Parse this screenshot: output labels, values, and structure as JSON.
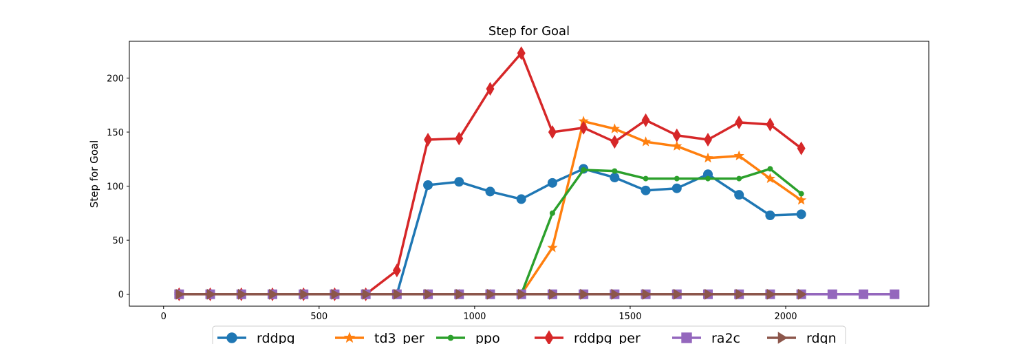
{
  "chart_data": {
    "type": "line",
    "title": "Step for Goal",
    "xlabel": "",
    "ylabel": "Step for Goal",
    "xlim": [
      -110,
      2460
    ],
    "ylim": [
      -11,
      234
    ],
    "xticks": [
      0,
      500,
      1000,
      1500,
      2000
    ],
    "yticks": [
      0,
      50,
      100,
      150,
      200
    ],
    "grid": false,
    "legend_position": "bottom-center",
    "series": [
      {
        "name": "rddpg",
        "color": "#1f77b4",
        "marker": "circle",
        "x": [
          50,
          150,
          250,
          350,
          450,
          550,
          650,
          750,
          850,
          950,
          1050,
          1150,
          1250,
          1350,
          1450,
          1550,
          1650,
          1750,
          1850,
          1950,
          2050
        ],
        "y": [
          0,
          0,
          0,
          0,
          0,
          0,
          0,
          0,
          101,
          104,
          95,
          88,
          103,
          116,
          108,
          96,
          98,
          111,
          92,
          73,
          74
        ]
      },
      {
        "name": "td3_per",
        "color": "#ff7f0e",
        "marker": "star",
        "x": [
          50,
          150,
          250,
          350,
          450,
          550,
          650,
          750,
          850,
          950,
          1050,
          1150,
          1250,
          1350,
          1450,
          1550,
          1650,
          1750,
          1850,
          1950,
          2050
        ],
        "y": [
          0,
          0,
          0,
          0,
          0,
          0,
          0,
          0,
          0,
          0,
          0,
          0,
          43,
          160,
          153,
          141,
          137,
          126,
          128,
          107,
          87
        ]
      },
      {
        "name": "ppo",
        "color": "#2ca02c",
        "marker": "point",
        "x": [
          50,
          150,
          250,
          350,
          450,
          550,
          650,
          750,
          850,
          950,
          1050,
          1150,
          1250,
          1350,
          1450,
          1550,
          1650,
          1750,
          1850,
          1950,
          2050
        ],
        "y": [
          0,
          0,
          0,
          0,
          0,
          0,
          0,
          0,
          0,
          0,
          0,
          0,
          75,
          115,
          114,
          107,
          107,
          107,
          107,
          116,
          93
        ]
      },
      {
        "name": "rddpg_per",
        "color": "#d62728",
        "marker": "thin_diamond",
        "x": [
          50,
          150,
          250,
          350,
          450,
          550,
          650,
          750,
          850,
          950,
          1050,
          1150,
          1250,
          1350,
          1450,
          1550,
          1650,
          1750,
          1850,
          1950,
          2050
        ],
        "y": [
          0,
          0,
          0,
          0,
          0,
          0,
          0,
          22,
          143,
          144,
          190,
          223,
          150,
          154,
          141,
          161,
          147,
          143,
          159,
          157,
          135
        ]
      },
      {
        "name": "ra2c",
        "color": "#9467bd",
        "marker": "square",
        "x": [
          50,
          150,
          250,
          350,
          450,
          550,
          650,
          750,
          850,
          950,
          1050,
          1150,
          1250,
          1350,
          1450,
          1550,
          1650,
          1750,
          1850,
          1950,
          2050,
          2150,
          2250,
          2350
        ],
        "y": [
          0,
          0,
          0,
          0,
          0,
          0,
          0,
          0,
          0,
          0,
          0,
          0,
          0,
          0,
          0,
          0,
          0,
          0,
          0,
          0,
          0,
          0,
          0,
          0
        ]
      },
      {
        "name": "rdqn",
        "color": "#8c564b",
        "marker": "triangle_right",
        "x": [
          50,
          150,
          250,
          350,
          450,
          550,
          650,
          750,
          850,
          950,
          1050,
          1150,
          1250,
          1350,
          1450,
          1550,
          1650,
          1750,
          1850,
          1950,
          2050
        ],
        "y": [
          0,
          0,
          0,
          0,
          0,
          0,
          0,
          0,
          0,
          0,
          0,
          0,
          0,
          0,
          0,
          0,
          0,
          0,
          0,
          0,
          0
        ]
      }
    ]
  }
}
